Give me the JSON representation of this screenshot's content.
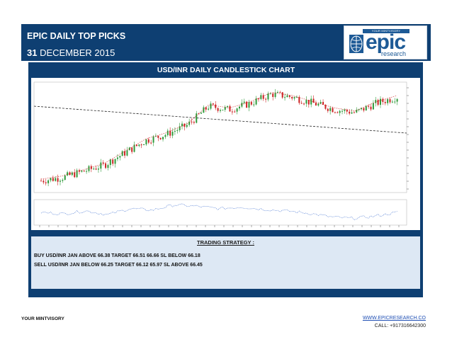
{
  "header": {
    "title": "EPIC DAILY TOP PICKS",
    "date_day": "31",
    "date_rest": "DECEMBER 2015"
  },
  "logo": {
    "tagline": "YOUR MINTVISORY",
    "word": "epic",
    "sub": "research",
    "icon": "globe-icon"
  },
  "chart": {
    "title": "USD/INR DAILY CANDLESTICK CHART"
  },
  "chart_data": {
    "type": "candlestick",
    "title": "USD/INR DAILY CANDLESTICK CHART",
    "series": [
      {
        "values": [
          64.0,
          64.1,
          64.3,
          64.5,
          64.9,
          65.3,
          65.5,
          65.8,
          66.4,
          66.3,
          66.5,
          66.8,
          66.7,
          66.5,
          66.3,
          66.2,
          66.5,
          66.7
        ]
      }
    ],
    "indicator_values": [
      50,
      48,
      52,
      47,
      55,
      53,
      60,
      58,
      55,
      57,
      54,
      52,
      49,
      44,
      42,
      45,
      50
    ]
  },
  "strategy": {
    "title": "TRADING STRATEGY :",
    "buy": "BUY USD/INR JAN ABOVE 66.38 TARGET 66.51 66.66 SL BELOW 66.18",
    "sell": "SELL USD/INR JAN BELOW 66.25 TARGET 66.12 65.97 SL ABOVE 66.45"
  },
  "footer": {
    "left": "YOUR MINTVISORY",
    "website": "WWW.EPICRESEARCH.CO",
    "call": "CALL: +917316642300"
  },
  "colors": {
    "header_bg": "#0e3f72",
    "strategy_bg": "#dde8f4",
    "candle_up": "#2e9a3a",
    "candle_down": "#cc2222"
  }
}
